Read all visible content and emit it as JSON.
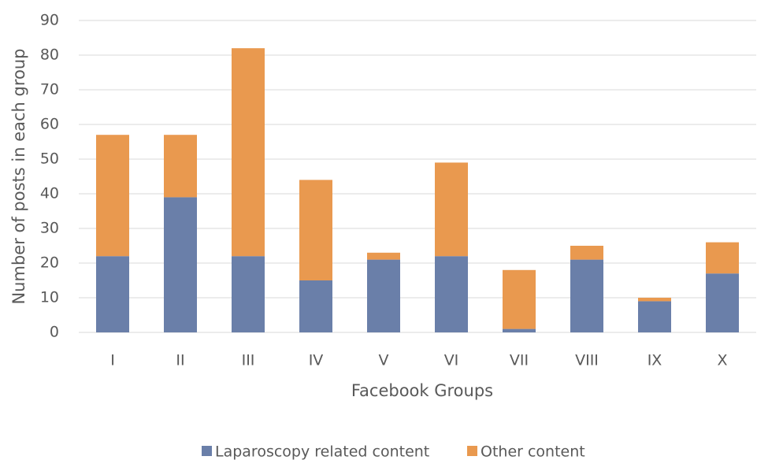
{
  "chart_data": {
    "type": "stacked_bar",
    "x_label": "Facebook Groups",
    "y_label": "Number of posts in each group",
    "categories": [
      "I",
      "II",
      "III",
      "IV",
      "V",
      "VI",
      "VII",
      "VIII",
      "IX",
      "X"
    ],
    "series": [
      {
        "name": "Laparoscopy related content",
        "color": "#6a7fa9",
        "values": [
          22,
          39,
          22,
          15,
          21,
          22,
          1,
          21,
          9,
          17
        ]
      },
      {
        "name": "Other content",
        "color": "#e9994f",
        "values": [
          35,
          18,
          60,
          29,
          2,
          27,
          17,
          4,
          1,
          9
        ]
      }
    ],
    "ylim": [
      0,
      90
    ],
    "yticks": [
      0,
      10,
      20,
      30,
      40,
      50,
      60,
      70,
      80,
      90
    ],
    "grid": true,
    "legend": "bottom"
  }
}
